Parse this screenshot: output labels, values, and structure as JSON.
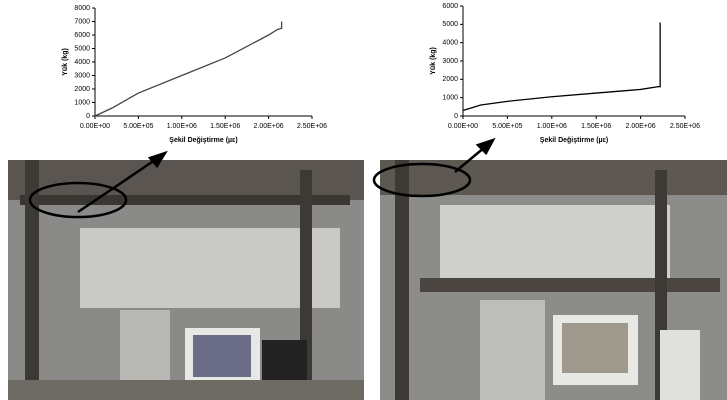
{
  "chart_data": [
    {
      "type": "line",
      "y_label": "Yük (kg)",
      "x_label": "Şekil Değiştirme (µε)",
      "x": [
        0,
        200000,
        500000,
        1000000,
        1500000,
        2000000,
        2100000,
        2150000,
        2150000
      ],
      "series": [
        {
          "color": "#444444",
          "values": [
            0,
            600,
            1700,
            3000,
            4300,
            6000,
            6400,
            6500,
            7000
          ]
        }
      ],
      "xlim": [
        0,
        2500000
      ],
      "ylim": [
        0,
        8000
      ],
      "xticks": [
        {
          "value": 0,
          "label": "0.00E+00"
        },
        {
          "value": 500000,
          "label": "5.00E+05"
        },
        {
          "value": 1000000,
          "label": "1.00E+06"
        },
        {
          "value": 1500000,
          "label": "1.50E+06"
        },
        {
          "value": 2000000,
          "label": "2.00E+06"
        },
        {
          "value": 2500000,
          "label": "2.50E+06"
        }
      ],
      "yticks": [
        0,
        1000,
        2000,
        3000,
        4000,
        5000,
        6000,
        7000,
        8000
      ],
      "grid": false
    },
    {
      "type": "line",
      "y_label": "Yük (kg)",
      "x_label": "Şekil Değiştirme (µε)",
      "x": [
        0,
        200000,
        500000,
        1000000,
        1500000,
        2000000,
        2200000,
        2220000,
        2220000
      ],
      "series": [
        {
          "color": "#000000",
          "values": [
            300,
            600,
            800,
            1050,
            1250,
            1450,
            1600,
            1600,
            5100
          ]
        }
      ],
      "xlim": [
        0,
        2500000
      ],
      "ylim": [
        0,
        6000
      ],
      "xticks": [
        {
          "value": 0,
          "label": "0.00E+00"
        },
        {
          "value": 500000,
          "label": "5.00E+05"
        },
        {
          "value": 1000000,
          "label": "1.00E+06"
        },
        {
          "value": 1500000,
          "label": "1.50E+06"
        },
        {
          "value": 2000000,
          "label": "2.00E+06"
        },
        {
          "value": 2500000,
          "label": "2.50E+06"
        }
      ],
      "yticks": [
        0,
        1000,
        2000,
        3000,
        4000,
        5000,
        6000
      ],
      "grid": false
    }
  ]
}
